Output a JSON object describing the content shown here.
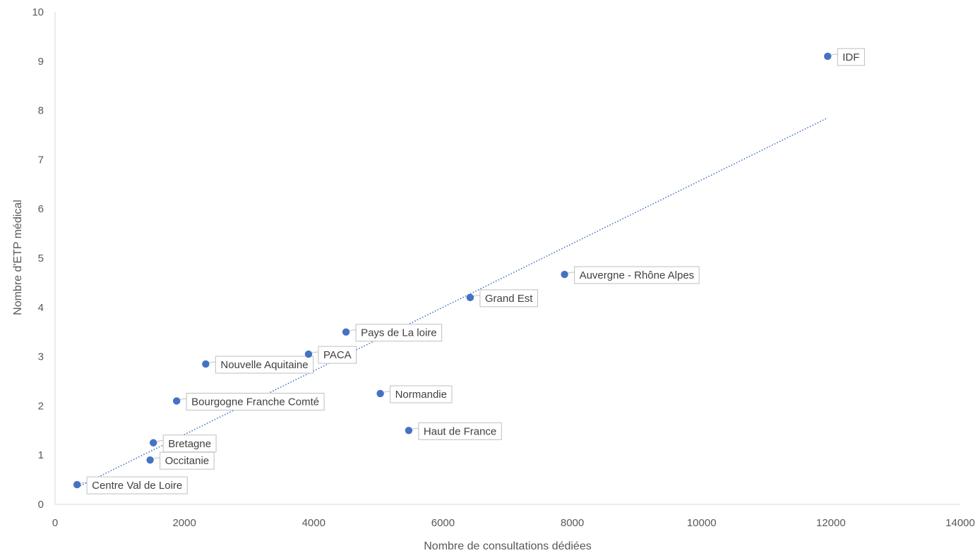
{
  "chart_data": {
    "type": "scatter",
    "xlabel": "Nombre de consultations dédiées",
    "ylabel": "Nombre d'ETP médical",
    "xlim": [
      0,
      14000
    ],
    "ylim": [
      0,
      10
    ],
    "xticks": [
      "0",
      "2000",
      "4000",
      "6000",
      "8000",
      "10000",
      "12000",
      "14000"
    ],
    "yticks": [
      "0",
      "1",
      "2",
      "3",
      "4",
      "5",
      "6",
      "7",
      "8",
      "9",
      "10"
    ],
    "grid": false,
    "legend": "none",
    "marker_color": "#4472C4",
    "trendline": {
      "type": "linear",
      "style": "dotted",
      "color": "#4472C4",
      "x_range": [
        350,
        11950
      ],
      "y_range": [
        0.35,
        7.85
      ]
    },
    "points": [
      {
        "label": "IDF",
        "x": 11950,
        "y": 9.1
      },
      {
        "label": "Auvergne - Rhône Alpes",
        "x": 7880,
        "y": 4.67
      },
      {
        "label": "Grand Est",
        "x": 6420,
        "y": 4.2
      },
      {
        "label": "Pays de La loire",
        "x": 4500,
        "y": 3.5
      },
      {
        "label": "PACA",
        "x": 3920,
        "y": 3.05
      },
      {
        "label": "Nouvelle Aquitaine",
        "x": 2330,
        "y": 2.85
      },
      {
        "label": "Normandie",
        "x": 5030,
        "y": 2.25
      },
      {
        "label": "Bourgogne Franche Comté",
        "x": 1880,
        "y": 2.1
      },
      {
        "label": "Haut de France",
        "x": 5470,
        "y": 1.5
      },
      {
        "label": "Bretagne",
        "x": 1520,
        "y": 1.25
      },
      {
        "label": "Occitanie",
        "x": 1470,
        "y": 0.9
      },
      {
        "label": "Centre Val de Loire",
        "x": 340,
        "y": 0.4
      }
    ]
  }
}
